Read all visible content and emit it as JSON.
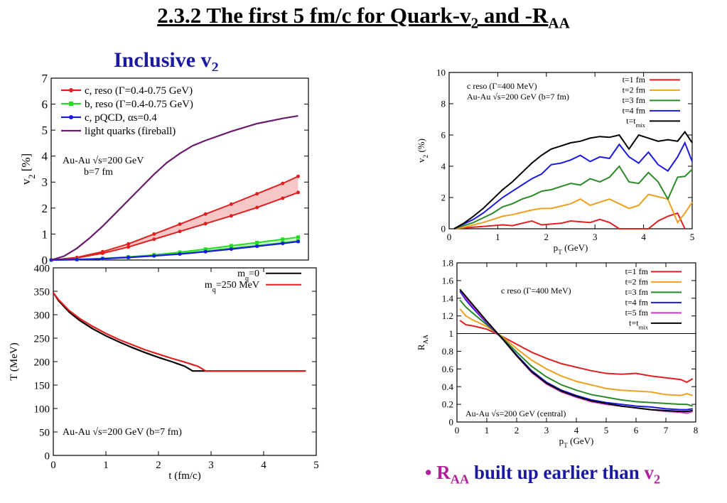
{
  "slide": {
    "title_main": "2.3.2 The first 5 fm/c for Quark-v",
    "title_sub1": "2",
    "title_mid": " and -R",
    "title_sub2": "AA",
    "heading_main": "Inclusive v",
    "heading_sub": "2",
    "bullet_dot": "•",
    "bullet_r": "R",
    "bullet_r_sub": "AA",
    "bullet_text": " built up earlier than ",
    "bullet_v": "v",
    "bullet_v_sub": "2"
  },
  "chart_data": [
    {
      "id": "v2-inclusive",
      "type": "line",
      "xlim": [
        0,
        5
      ],
      "ylim": [
        0,
        7
      ],
      "yticks": [
        0,
        1,
        2,
        3,
        4,
        5,
        6,
        7
      ],
      "ylabel": "v2 [%]",
      "xlabel": "",
      "annotation": [
        "Au-Au √s=200 GeV",
        "b=7 fm"
      ],
      "legend_position": "top-left",
      "series": [
        {
          "name": "c, reso (Γ=0.4-0.75 GeV)",
          "color": "#e02020",
          "marker": "circle",
          "band": true,
          "x": [
            0,
            0.5,
            1.0,
            1.5,
            2.0,
            2.5,
            3.0,
            3.5,
            4.0,
            4.5,
            4.8
          ],
          "upper": [
            0,
            0.1,
            0.32,
            0.62,
            1.0,
            1.38,
            1.77,
            2.15,
            2.55,
            2.95,
            3.22
          ],
          "lower": [
            0,
            0.08,
            0.26,
            0.5,
            0.8,
            1.1,
            1.4,
            1.7,
            2.02,
            2.38,
            2.6
          ]
        },
        {
          "name": "b, reso (Γ=0.4-0.75 GeV)",
          "color": "#22dd22",
          "marker": "square",
          "band": true,
          "x": [
            0,
            0.5,
            1.0,
            1.5,
            2.0,
            2.5,
            3.0,
            3.5,
            4.0,
            4.5,
            4.8
          ],
          "upper": [
            0,
            0.02,
            0.06,
            0.12,
            0.2,
            0.3,
            0.42,
            0.55,
            0.67,
            0.8,
            0.88
          ],
          "lower": [
            0,
            0.02,
            0.05,
            0.1,
            0.17,
            0.25,
            0.34,
            0.45,
            0.55,
            0.66,
            0.73
          ]
        },
        {
          "name": "c, pQCD, αs=0.4",
          "color": "#1a1ae0",
          "marker": "circle",
          "band": false,
          "x": [
            0,
            0.5,
            1.0,
            1.5,
            2.0,
            2.5,
            3.0,
            3.5,
            4.0,
            4.5,
            4.8
          ],
          "values": [
            0,
            0.02,
            0.05,
            0.1,
            0.16,
            0.23,
            0.32,
            0.42,
            0.53,
            0.64,
            0.71
          ]
        },
        {
          "name": "light quarks (fireball)",
          "color": "#6a1a6a",
          "marker": "none",
          "band": false,
          "x": [
            0,
            0.25,
            0.5,
            0.75,
            1.0,
            1.25,
            1.5,
            1.75,
            2.0,
            2.25,
            2.5,
            2.75,
            3.0,
            3.5,
            4.0,
            4.5,
            4.8
          ],
          "values": [
            0,
            0.15,
            0.45,
            0.85,
            1.3,
            1.8,
            2.3,
            2.8,
            3.3,
            3.75,
            4.1,
            4.4,
            4.6,
            4.95,
            5.25,
            5.45,
            5.55
          ]
        }
      ]
    },
    {
      "id": "temperature",
      "type": "line",
      "xlim": [
        0,
        5
      ],
      "ylim": [
        0,
        400
      ],
      "xticks": [
        0,
        1,
        2,
        3,
        4,
        5
      ],
      "yticks": [
        0,
        50,
        100,
        150,
        200,
        250,
        300,
        350,
        400
      ],
      "xlabel": "t (fm/c)",
      "ylabel": "T (MeV)",
      "annotation": "Au-Au √s=200 GeV (b=7 fm)",
      "legend_position": "top-right",
      "series": [
        {
          "name": "mq=0",
          "name_main": "m",
          "name_sub": "q",
          "name_rest": "=0",
          "color": "#000000",
          "x": [
            0,
            0.1,
            0.3,
            0.5,
            0.75,
            1.0,
            1.25,
            1.5,
            1.75,
            2.0,
            2.25,
            2.5,
            2.65,
            2.9,
            3.5,
            4.0,
            4.8
          ],
          "values": [
            347,
            330,
            306,
            288,
            270,
            255,
            242,
            230,
            219,
            209,
            200,
            190,
            180,
            180,
            180,
            180,
            180
          ]
        },
        {
          "name": "mq=250 MeV",
          "name_main": "m",
          "name_sub": "q",
          "name_rest": "=250 MeV",
          "color": "#e02020",
          "x": [
            0,
            0.1,
            0.3,
            0.5,
            0.75,
            1.0,
            1.25,
            1.5,
            1.75,
            2.0,
            2.25,
            2.5,
            2.75,
            2.9,
            3.5,
            4.0,
            4.8
          ],
          "values": [
            347,
            332,
            309,
            292,
            275,
            260,
            247,
            236,
            225,
            216,
            207,
            199,
            190,
            180,
            180,
            180,
            180
          ]
        }
      ]
    },
    {
      "id": "v2-time",
      "type": "line",
      "xlim": [
        0,
        5
      ],
      "ylim": [
        0,
        10
      ],
      "xticks": [
        0,
        1,
        2,
        3,
        4,
        5
      ],
      "yticks": [
        0,
        2,
        4,
        6,
        8,
        10
      ],
      "xlabel": "pT (GeV)",
      "ylabel": "v2 (%)",
      "annotation": [
        "c reso (Γ=400 MeV)",
        "Au-Au √s=200 GeV (b=7 fm)"
      ],
      "legend_position": "top-right",
      "series": [
        {
          "name": "t=1 fm",
          "color": "#e02020",
          "x": [
            0.1,
            0.3,
            0.5,
            0.7,
            0.9,
            1.1,
            1.3,
            1.5,
            1.7,
            1.9,
            2.1,
            2.3,
            2.5,
            2.7,
            2.9,
            3.1,
            3.3,
            3.5,
            3.7,
            3.9,
            4.1,
            4.3,
            4.5,
            4.7,
            4.85
          ],
          "values": [
            0,
            0.05,
            0.1,
            0.15,
            0.2,
            0.25,
            0.2,
            0.35,
            0.5,
            0.25,
            0.3,
            0.35,
            0.5,
            0.45,
            0.4,
            0.6,
            0.4,
            0,
            0,
            0,
            0,
            0.5,
            0.8,
            1.0,
            0
          ]
        },
        {
          "name": "t=2 fm",
          "color": "#f0a020",
          "x": [
            0.1,
            0.3,
            0.5,
            0.7,
            0.9,
            1.1,
            1.3,
            1.5,
            1.7,
            1.9,
            2.1,
            2.3,
            2.5,
            2.7,
            2.9,
            3.1,
            3.3,
            3.5,
            3.7,
            3.9,
            4.1,
            4.3,
            4.5,
            4.7,
            4.85,
            5.0
          ],
          "values": [
            0,
            0.1,
            0.25,
            0.4,
            0.6,
            0.8,
            0.9,
            1.05,
            1.2,
            1.3,
            1.3,
            1.45,
            1.6,
            1.9,
            1.5,
            1.7,
            1.9,
            1.6,
            1.3,
            1.5,
            2.2,
            2.05,
            1.9,
            0.4,
            1.0,
            1.7
          ]
        },
        {
          "name": "t=3 fm",
          "color": "#2a8a2a",
          "x": [
            0.1,
            0.3,
            0.5,
            0.7,
            0.9,
            1.1,
            1.3,
            1.5,
            1.7,
            1.9,
            2.1,
            2.3,
            2.5,
            2.7,
            2.9,
            3.1,
            3.3,
            3.5,
            3.7,
            3.9,
            4.1,
            4.3,
            4.5,
            4.7,
            4.85,
            5.0
          ],
          "values": [
            0,
            0.2,
            0.4,
            0.7,
            1.0,
            1.4,
            1.6,
            1.9,
            2.1,
            2.4,
            2.5,
            2.7,
            2.9,
            2.8,
            3.2,
            3.0,
            3.3,
            4.0,
            3.0,
            2.9,
            3.6,
            3.0,
            1.9,
            3.3,
            3.35,
            3.8
          ]
        },
        {
          "name": "t=4 fm",
          "color": "#1a1ae0",
          "x": [
            0.1,
            0.3,
            0.5,
            0.7,
            0.9,
            1.1,
            1.3,
            1.5,
            1.7,
            1.9,
            2.1,
            2.3,
            2.5,
            2.7,
            2.9,
            3.1,
            3.3,
            3.5,
            3.7,
            3.9,
            4.1,
            4.3,
            4.5,
            4.7,
            4.85,
            5.0
          ],
          "values": [
            0,
            0.3,
            0.6,
            1.0,
            1.5,
            2.0,
            2.4,
            2.8,
            3.2,
            3.5,
            4.1,
            4.2,
            4.4,
            4.7,
            4.3,
            4.6,
            4.5,
            5.4,
            4.6,
            4.2,
            4.9,
            4.1,
            3.7,
            4.6,
            5.5,
            4.3
          ]
        },
        {
          "name": "t=tmix",
          "name_main": "t=t",
          "name_sub": "mix",
          "color": "#000000",
          "x": [
            0.1,
            0.3,
            0.5,
            0.7,
            0.9,
            1.1,
            1.3,
            1.5,
            1.7,
            1.9,
            2.1,
            2.3,
            2.5,
            2.7,
            2.9,
            3.1,
            3.3,
            3.5,
            3.7,
            3.9,
            4.1,
            4.3,
            4.5,
            4.7,
            4.85,
            5.0
          ],
          "values": [
            0,
            0.35,
            0.8,
            1.3,
            1.9,
            2.5,
            3.0,
            3.6,
            4.2,
            4.7,
            5.1,
            5.3,
            5.5,
            5.6,
            5.8,
            5.9,
            5.85,
            6.0,
            5.1,
            6.0,
            5.8,
            5.6,
            5.7,
            5.6,
            6.2,
            5.5
          ]
        }
      ]
    },
    {
      "id": "raa-time",
      "type": "line",
      "xlim": [
        0,
        8
      ],
      "ylim": [
        0,
        1.8
      ],
      "xticks": [
        0,
        1,
        2,
        3,
        4,
        5,
        6,
        7,
        8
      ],
      "yticks": [
        0,
        0.2,
        0.4,
        0.6,
        0.8,
        1,
        1.2,
        1.4,
        1.6,
        1.8
      ],
      "reference_line": 1,
      "xlabel": "pT (GeV)",
      "ylabel": "RAA",
      "annotation": [
        "c reso (Γ=400 MeV)",
        "Au-Au √s=200 GeV (central)"
      ],
      "legend_position": "top-right",
      "series": [
        {
          "name": "t=1 fm",
          "color": "#e02020",
          "x": [
            0.1,
            0.3,
            0.5,
            1.0,
            1.5,
            2.0,
            2.5,
            3.0,
            3.5,
            4.0,
            4.5,
            5.0,
            5.5,
            6.0,
            6.5,
            7.0,
            7.5,
            7.7,
            7.9
          ],
          "values": [
            1.15,
            1.1,
            1.09,
            1.05,
            0.97,
            0.88,
            0.79,
            0.72,
            0.66,
            0.62,
            0.58,
            0.55,
            0.54,
            0.55,
            0.52,
            0.5,
            0.48,
            0.45,
            0.49
          ]
        },
        {
          "name": "t=2 fm",
          "color": "#f0a020",
          "x": [
            0.1,
            0.3,
            0.5,
            1.0,
            1.5,
            2.0,
            2.5,
            3.0,
            3.5,
            4.0,
            4.5,
            5.0,
            5.5,
            6.0,
            6.5,
            7.0,
            7.5,
            7.7,
            7.9
          ],
          "values": [
            1.28,
            1.2,
            1.16,
            1.08,
            0.97,
            0.83,
            0.7,
            0.6,
            0.52,
            0.46,
            0.42,
            0.38,
            0.36,
            0.35,
            0.34,
            0.31,
            0.3,
            0.32,
            0.3
          ]
        },
        {
          "name": "t=3 fm",
          "color": "#2a8a2a",
          "x": [
            0.1,
            0.3,
            0.5,
            1.0,
            1.5,
            2.0,
            2.5,
            3.0,
            3.5,
            4.0,
            4.5,
            5.0,
            5.5,
            6.0,
            6.5,
            7.0,
            7.5,
            7.7,
            7.9
          ],
          "values": [
            1.38,
            1.3,
            1.24,
            1.1,
            0.96,
            0.79,
            0.63,
            0.51,
            0.42,
            0.36,
            0.31,
            0.28,
            0.25,
            0.23,
            0.22,
            0.21,
            0.2,
            0.2,
            0.18
          ]
        },
        {
          "name": "t=4 fm",
          "color": "#1a1ae0",
          "x": [
            0.1,
            0.3,
            0.5,
            1.0,
            1.5,
            2.0,
            2.5,
            3.0,
            3.5,
            4.0,
            4.5,
            5.0,
            5.5,
            6.0,
            6.5,
            7.0,
            7.5,
            7.7,
            7.9
          ],
          "values": [
            1.48,
            1.38,
            1.3,
            1.12,
            0.95,
            0.76,
            0.58,
            0.45,
            0.36,
            0.3,
            0.25,
            0.22,
            0.2,
            0.18,
            0.17,
            0.15,
            0.14,
            0.14,
            0.15
          ]
        },
        {
          "name": "t=5 fm",
          "color": "#cc33cc",
          "x": [
            0.1,
            0.3,
            0.5,
            1.0,
            1.5,
            2.0,
            2.5,
            3.0,
            3.5,
            4.0,
            4.5,
            5.0,
            5.5,
            6.0,
            6.5,
            7.0,
            7.5,
            7.7,
            7.9
          ],
          "values": [
            1.5,
            1.4,
            1.32,
            1.13,
            0.95,
            0.75,
            0.56,
            0.43,
            0.34,
            0.28,
            0.23,
            0.2,
            0.18,
            0.16,
            0.14,
            0.12,
            0.11,
            0.1,
            0.12
          ]
        },
        {
          "name": "t=tmix",
          "name_main": "t=t",
          "name_sub": "mix",
          "color": "#000000",
          "x": [
            0.1,
            0.3,
            0.5,
            1.0,
            1.5,
            2.0,
            2.5,
            3.0,
            3.5,
            4.0,
            4.5,
            5.0,
            5.5,
            6.0,
            6.5,
            7.0,
            7.5,
            7.7,
            7.9
          ],
          "values": [
            1.5,
            1.42,
            1.34,
            1.14,
            0.95,
            0.75,
            0.57,
            0.44,
            0.35,
            0.29,
            0.24,
            0.21,
            0.18,
            0.16,
            0.14,
            0.13,
            0.12,
            0.12,
            0.13
          ]
        }
      ]
    }
  ]
}
